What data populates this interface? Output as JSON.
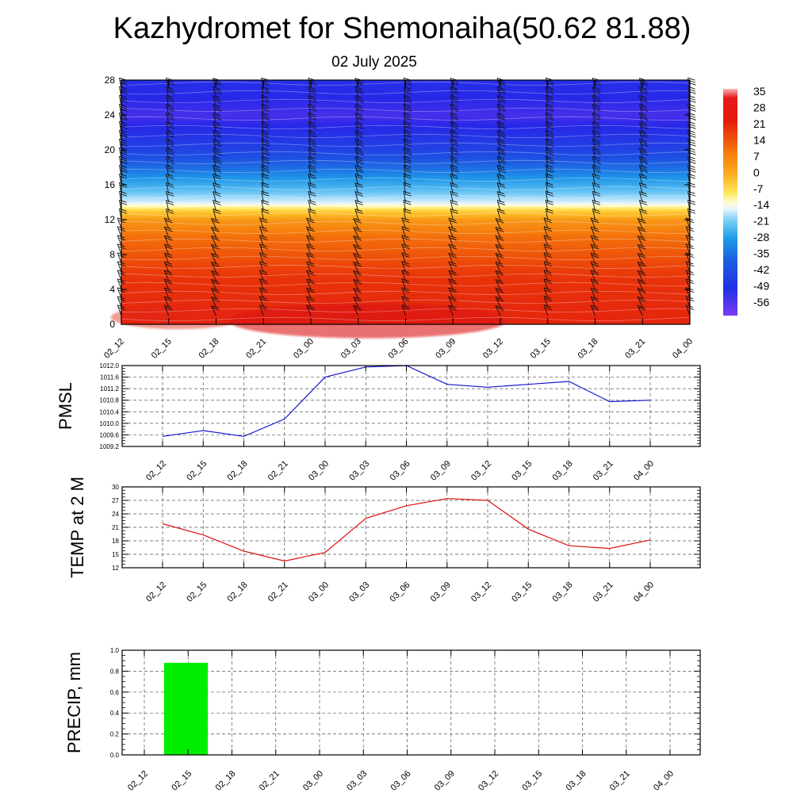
{
  "title": "Kazhydromet for Shemonaiha(50.62 81.88)",
  "subtitle": "02 July 2025",
  "chart_data": [
    {
      "type": "heatmap",
      "x_categories": [
        "02_12",
        "02_15",
        "02_18",
        "02_21",
        "03_00",
        "03_03",
        "03_06",
        "03_09",
        "03_12",
        "03_15",
        "03_18",
        "03_21",
        "04_00"
      ],
      "y_ticks": [
        0,
        4,
        8,
        12,
        16,
        20,
        24,
        28
      ],
      "ylim": [
        0,
        28
      ],
      "colorbar_labels": [
        "35",
        "28",
        "21",
        "14",
        "7",
        "0",
        "-7",
        "-14",
        "-21",
        "-28",
        "-35",
        "-42",
        "-49",
        "-56"
      ],
      "colorbar_range": [
        -60,
        38
      ],
      "temperature_profile": {
        "levels": [
          0,
          2,
          4,
          6,
          8,
          10,
          12,
          13,
          14,
          16,
          18,
          20,
          22,
          24,
          26,
          28
        ],
        "values": [
          30,
          28,
          25,
          23,
          20,
          17,
          12,
          5,
          -15,
          -28,
          -38,
          -45,
          -50,
          -55,
          -52,
          -50
        ]
      },
      "grid": false
    },
    {
      "type": "line",
      "ylabel": "PMSL",
      "categories": [
        "02_12",
        "02_15",
        "02_18",
        "02_21",
        "03_00",
        "03_03",
        "03_06",
        "03_09",
        "03_12",
        "03_15",
        "03_18",
        "03_21",
        "04_00"
      ],
      "series": [
        {
          "values": [
            1009.55,
            1009.75,
            1009.55,
            1010.15,
            1011.6,
            1011.95,
            1012.0,
            1011.35,
            1011.25,
            1011.35,
            1011.45,
            1010.75,
            1010.8
          ],
          "color": "#1515d0"
        }
      ],
      "ylim": [
        1009.2,
        1012.0
      ],
      "yticks": [
        1009.2,
        1009.6,
        1010.0,
        1010.4,
        1010.8,
        1011.2,
        1011.6,
        1012.0
      ],
      "ytick_labels": [
        "1009.2",
        "1009.6",
        "1010.0",
        "1010.4",
        "1010.8",
        "1011.2",
        "1011.6",
        "1012.0"
      ],
      "grid": true
    },
    {
      "type": "line",
      "ylabel": "TEMP at 2 M",
      "categories": [
        "02_12",
        "02_15",
        "02_18",
        "02_21",
        "03_00",
        "03_03",
        "03_06",
        "03_09",
        "03_12",
        "03_15",
        "03_18",
        "03_21",
        "04_00"
      ],
      "series": [
        {
          "values": [
            21.8,
            19.3,
            15.7,
            13.5,
            15.4,
            23.0,
            25.8,
            27.4,
            27.0,
            20.6,
            16.9,
            16.3,
            18.2
          ],
          "color": "#e01010"
        }
      ],
      "ylim": [
        12,
        30
      ],
      "yticks": [
        12,
        15,
        18,
        21,
        24,
        27,
        30
      ],
      "ytick_labels": [
        "12",
        "15",
        "18",
        "21",
        "24",
        "27",
        "30"
      ],
      "grid": true
    },
    {
      "type": "bar",
      "ylabel": "PRECIP, mm",
      "categories": [
        "02_12",
        "02_15",
        "02_18",
        "02_21",
        "03_00",
        "03_03",
        "03_06",
        "03_09",
        "03_12",
        "03_15",
        "03_18",
        "03_21",
        "04_00"
      ],
      "values": [
        0,
        0.88,
        0,
        0,
        0,
        0,
        0,
        0,
        0,
        0,
        0,
        0,
        0
      ],
      "color": "#00ee00",
      "ylim": [
        0,
        1.0
      ],
      "yticks": [
        0,
        0.2,
        0.4,
        0.6,
        0.8,
        1.0
      ],
      "ytick_labels": [
        "0.0",
        "0.2",
        "0.4",
        "0.6",
        "0.8",
        "1.0"
      ],
      "grid": true
    }
  ]
}
